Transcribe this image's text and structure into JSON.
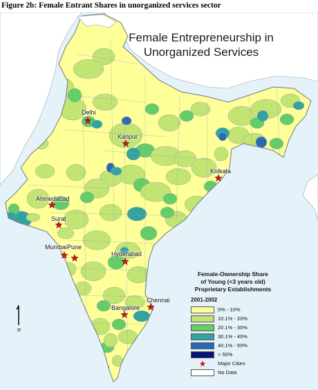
{
  "figure_caption": "Figure 2b: Female Entrant Shares in unorganized services sector",
  "map_title_line1": "Female Entrepreneurship in",
  "map_title_line2": "Unorganized Services",
  "colors": {
    "sea": "#e6f2f9",
    "neighbor_land": "#ffffff",
    "no_data": "#ffffff",
    "boundary": "#9aa6b0",
    "city_marker": "#c8141e",
    "bins": [
      "#ffff99",
      "#c2e472",
      "#66cc66",
      "#33a3a0",
      "#2a6ab0",
      "#08137a"
    ]
  },
  "cities": [
    {
      "name": "Delhi",
      "icon": "star-icon"
    },
    {
      "name": "Kanpur",
      "icon": "star-icon"
    },
    {
      "name": "Kolkata",
      "icon": "star-icon"
    },
    {
      "name": "Ahmedabad",
      "icon": "star-icon"
    },
    {
      "name": "Surat",
      "icon": "star-icon"
    },
    {
      "name": "Mumbai",
      "icon": "star-icon"
    },
    {
      "name": "Pune",
      "icon": "star-icon"
    },
    {
      "name": "Hyderabad",
      "icon": "star-icon"
    },
    {
      "name": "Bangalore",
      "icon": "star-icon"
    },
    {
      "name": "Chennai",
      "icon": "star-icon"
    }
  ],
  "legend": {
    "title_line1": "Female-Ownership Share",
    "title_line2": "of Young  (<3 years old)",
    "title_line3": "Proprietary Establishments",
    "period": "2001-2002",
    "items": [
      {
        "label": "0% - 10%",
        "color": "#ffff99"
      },
      {
        "label": "10.1% - 20%",
        "color": "#c2e472"
      },
      {
        "label": "20.1% - 30%",
        "color": "#66cc66"
      },
      {
        "label": "30.1% - 40%",
        "color": "#33a3a0"
      },
      {
        "label": "40.1% - 50%",
        "color": "#2a6ab0"
      },
      {
        "label": "> 50%",
        "color": "#08137a"
      }
    ],
    "major_cities_label": "Major Cities",
    "no_data_label": "No Data",
    "no_data_color": "#ffffff"
  },
  "north_arrow_label": "N"
}
